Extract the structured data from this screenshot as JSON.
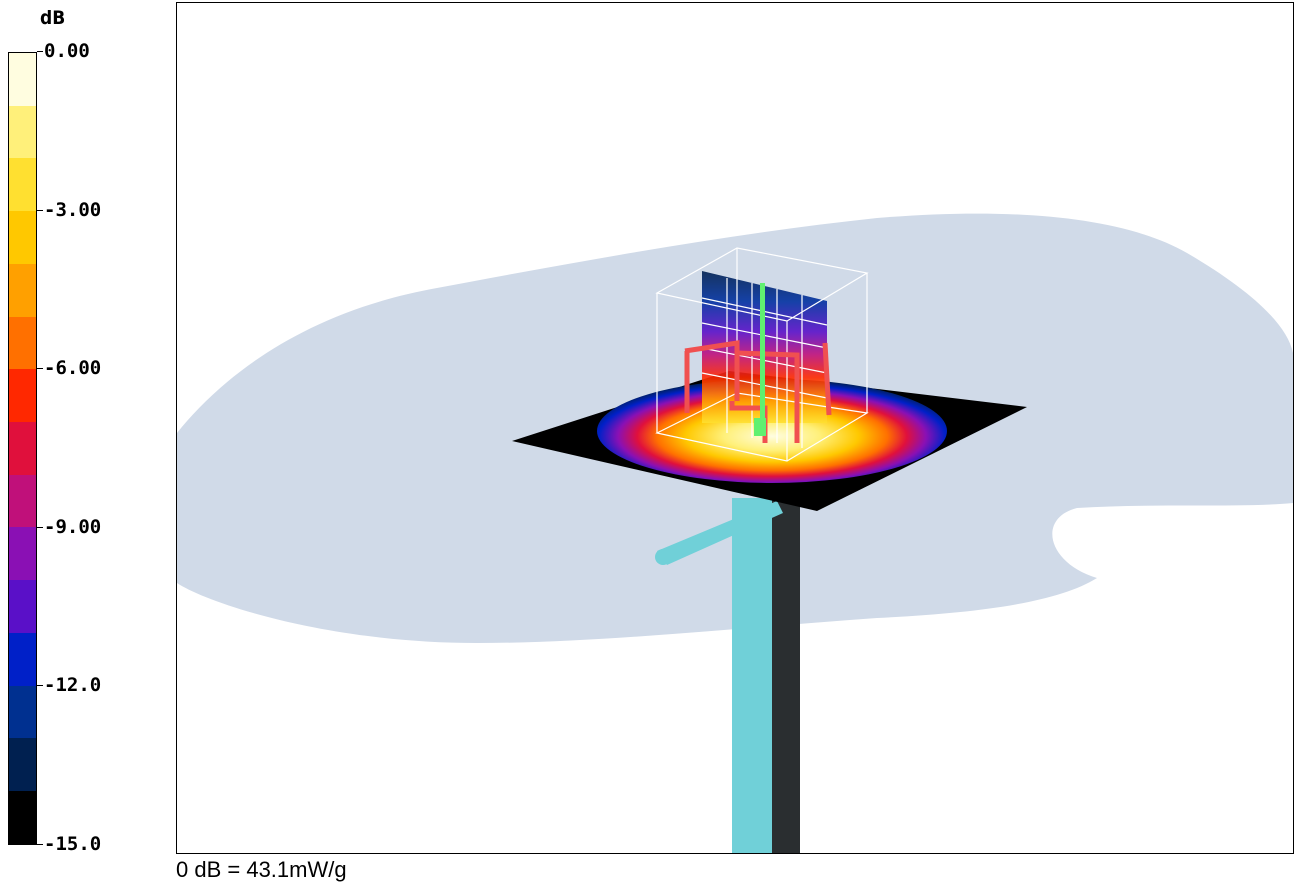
{
  "chart_data": {
    "type": "heatmap",
    "title": "",
    "colorbar": {
      "unit_label": "dB",
      "ticks": [
        "0.00",
        "-3.00",
        "-6.00",
        "-9.00",
        "-12.0",
        "-15.0"
      ],
      "range": [
        -15.0,
        0.0
      ],
      "levels": [
        {
          "from": -1.0,
          "to": 0.0,
          "color": "#fffde0"
        },
        {
          "from": -2.0,
          "to": -1.0,
          "color": "#fff07a"
        },
        {
          "from": -3.0,
          "to": -2.0,
          "color": "#ffe030"
        },
        {
          "from": -4.0,
          "to": -3.0,
          "color": "#ffc800"
        },
        {
          "from": -5.0,
          "to": -4.0,
          "color": "#ffa000"
        },
        {
          "from": -6.0,
          "to": -5.0,
          "color": "#ff7000"
        },
        {
          "from": -7.0,
          "to": -6.0,
          "color": "#ff2800"
        },
        {
          "from": -8.0,
          "to": -7.0,
          "color": "#e0103c"
        },
        {
          "from": -9.0,
          "to": -8.0,
          "color": "#c0107a"
        },
        {
          "from": -10.0,
          "to": -9.0,
          "color": "#8a10b4"
        },
        {
          "from": -11.0,
          "to": -10.0,
          "color": "#5a10c8"
        },
        {
          "from": -12.0,
          "to": -11.0,
          "color": "#0020c8"
        },
        {
          "from": -13.0,
          "to": -12.0,
          "color": "#003090"
        },
        {
          "from": -14.0,
          "to": -13.0,
          "color": "#002050"
        },
        {
          "from": -15.0,
          "to": -14.0,
          "color": "#000000"
        }
      ]
    },
    "reference": "0 dB = 43.1mW/g"
  },
  "colors": {
    "phantom": "#d0dae8",
    "rod_light": "#70d0d8",
    "rod_dark": "#2a2e30",
    "antenna": "#f05050",
    "probe": "#60f070"
  }
}
